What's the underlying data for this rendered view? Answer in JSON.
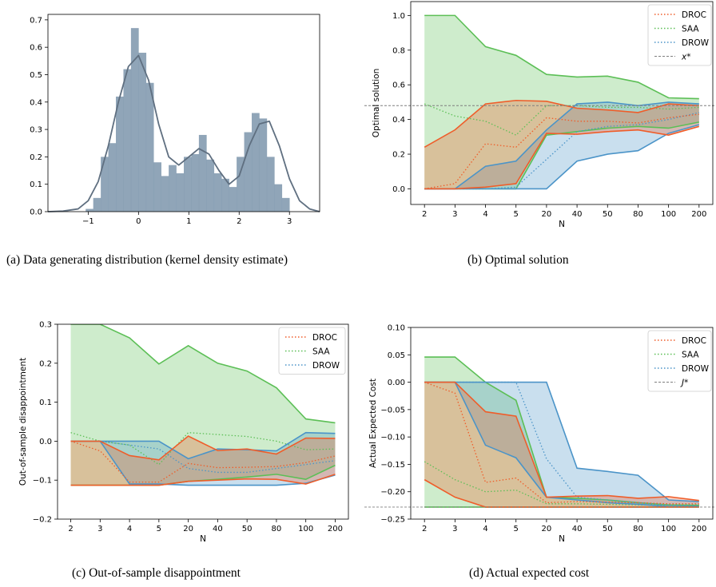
{
  "captions": {
    "a": "(a) Data generating distribution (kernel density estimate)",
    "b": "(b) Optimal solution",
    "c": "(c) Out-of-sample disappointment",
    "d": "(d) Actual expected cost"
  },
  "colors": {
    "droc": "#ef5d2a",
    "saa": "#5cbf56",
    "drow": "#4b94c8",
    "hist": "#7d95ab",
    "kde": "#5f6f80",
    "ref": "#7f7f7f"
  },
  "chart_data": [
    {
      "id": "a",
      "type": "bar",
      "xlabel": "",
      "ylabel": "",
      "xlim": [
        -1.8,
        3.6
      ],
      "ylim": [
        0,
        0.72
      ],
      "xticks": [
        -1,
        0,
        1,
        2,
        3
      ],
      "xtick_labels": [
        "−1",
        "0",
        "1",
        "2",
        "3"
      ],
      "yticks": [
        0,
        0.1,
        0.2,
        0.3,
        0.4,
        0.5,
        0.6,
        0.7
      ],
      "ytick_labels": [
        "0.0",
        "0.1",
        "0.2",
        "0.3",
        "0.4",
        "0.5",
        "0.6",
        "0.7"
      ],
      "bin_edges": [
        -1.05,
        -0.9,
        -0.75,
        -0.6,
        -0.45,
        -0.3,
        -0.15,
        0.0,
        0.15,
        0.3,
        0.45,
        0.6,
        0.75,
        0.9,
        1.05,
        1.2,
        1.35,
        1.5,
        1.65,
        1.8,
        1.95,
        2.1,
        2.25,
        2.4,
        2.55,
        2.7,
        2.85,
        3.0
      ],
      "bin_heights": [
        0.01,
        0.05,
        0.2,
        0.25,
        0.42,
        0.52,
        0.67,
        0.58,
        0.47,
        0.18,
        0.13,
        0.17,
        0.14,
        0.2,
        0.21,
        0.28,
        0.19,
        0.14,
        0.12,
        0.09,
        0.2,
        0.29,
        0.36,
        0.34,
        0.2,
        0.1,
        0.05
      ],
      "kde_x": [
        -1.8,
        -1.5,
        -1.2,
        -1.0,
        -0.8,
        -0.6,
        -0.4,
        -0.2,
        0.0,
        0.2,
        0.4,
        0.6,
        0.8,
        1.0,
        1.2,
        1.4,
        1.6,
        1.8,
        2.0,
        2.2,
        2.4,
        2.6,
        2.8,
        3.0,
        3.2,
        3.4,
        3.6
      ],
      "kde_y": [
        0.0,
        0.002,
        0.01,
        0.04,
        0.11,
        0.24,
        0.4,
        0.53,
        0.57,
        0.48,
        0.32,
        0.2,
        0.17,
        0.2,
        0.23,
        0.21,
        0.15,
        0.1,
        0.13,
        0.24,
        0.32,
        0.33,
        0.24,
        0.12,
        0.04,
        0.01,
        0.0
      ]
    },
    {
      "id": "b",
      "type": "line",
      "xlabel": "N",
      "ylabel": "Optimal solution",
      "categories": [
        "2",
        "3",
        "4",
        "5",
        "20",
        "40",
        "50",
        "80",
        "100",
        "200"
      ],
      "ylim": [
        -0.09,
        1.08
      ],
      "yticks": [
        0,
        0.2,
        0.4,
        0.6,
        0.8,
        1.0
      ],
      "ytick_labels": [
        "0.0",
        "0.2",
        "0.4",
        "0.6",
        "0.8",
        "1.0"
      ],
      "legend_position": "top-right",
      "legend": [
        {
          "label": "DROC",
          "style": "dotted",
          "color": "#ef5d2a"
        },
        {
          "label": "SAA",
          "style": "dotted",
          "color": "#5cbf56"
        },
        {
          "label": "DROW",
          "style": "dotted",
          "color": "#4b94c8"
        },
        {
          "label": "x*",
          "style": "dashed",
          "color": "#7f7f7f"
        }
      ],
      "reference_line": 0.48,
      "series": [
        {
          "key": "saa",
          "upper": [
            1.0,
            1.0,
            0.82,
            0.77,
            0.66,
            0.645,
            0.65,
            0.615,
            0.525,
            0.52
          ],
          "lower": [
            0.0,
            0.0,
            0.0,
            0.0,
            0.31,
            0.33,
            0.35,
            0.36,
            0.35,
            0.385
          ],
          "mean": [
            0.49,
            0.42,
            0.39,
            0.31,
            0.48,
            0.48,
            0.47,
            0.47,
            0.46,
            0.47
          ]
        },
        {
          "key": "drow",
          "upper": [
            0.0,
            0.0,
            0.13,
            0.16,
            0.34,
            0.49,
            0.5,
            0.48,
            0.5,
            0.49
          ],
          "lower": [
            0.0,
            0.0,
            0.0,
            0.0,
            0.0,
            0.16,
            0.2,
            0.22,
            0.32,
            0.37
          ],
          "mean": [
            0.0,
            0.0,
            0.0,
            0.01,
            0.17,
            0.33,
            0.36,
            0.37,
            0.4,
            0.44
          ]
        },
        {
          "key": "droc",
          "upper": [
            0.24,
            0.34,
            0.49,
            0.51,
            0.505,
            0.465,
            0.455,
            0.44,
            0.49,
            0.48
          ],
          "lower": [
            0.0,
            0.0,
            0.01,
            0.03,
            0.32,
            0.315,
            0.33,
            0.34,
            0.31,
            0.36
          ],
          "mean": [
            0.0,
            0.03,
            0.26,
            0.24,
            0.41,
            0.39,
            0.39,
            0.38,
            0.41,
            0.43
          ]
        }
      ]
    },
    {
      "id": "c",
      "type": "line",
      "xlabel": "N",
      "ylabel": "Out-of-sample disappointment",
      "categories": [
        "2",
        "3",
        "4",
        "5",
        "20",
        "40",
        "50",
        "80",
        "100",
        "200"
      ],
      "ylim": [
        -0.2,
        0.3
      ],
      "yticks": [
        -0.2,
        -0.1,
        0.0,
        0.1,
        0.2,
        0.3
      ],
      "ytick_labels": [
        "−0.2",
        "−0.1",
        "0.0",
        "0.1",
        "0.2",
        "0.3"
      ],
      "legend_position": "top-right",
      "legend": [
        {
          "label": "DROC",
          "style": "dotted",
          "color": "#ef5d2a"
        },
        {
          "label": "SAA",
          "style": "dotted",
          "color": "#5cbf56"
        },
        {
          "label": "DROW",
          "style": "dotted",
          "color": "#4b94c8"
        }
      ],
      "series": [
        {
          "key": "saa",
          "upper": [
            0.3,
            0.3,
            0.265,
            0.198,
            0.245,
            0.2,
            0.18,
            0.137,
            0.057,
            0.047
          ],
          "lower": [
            -0.113,
            -0.113,
            -0.113,
            -0.113,
            -0.103,
            -0.098,
            -0.092,
            -0.085,
            -0.098,
            -0.062
          ],
          "mean": [
            0.022,
            0.0,
            -0.01,
            -0.06,
            0.022,
            0.017,
            0.012,
            0.0,
            -0.022,
            -0.02
          ]
        },
        {
          "key": "drow",
          "upper": [
            0.0,
            0.0,
            0.0,
            0.0,
            -0.045,
            -0.02,
            -0.022,
            -0.025,
            0.022,
            0.02
          ],
          "lower": [
            0.0,
            0.0,
            -0.11,
            -0.11,
            -0.113,
            -0.113,
            -0.113,
            -0.113,
            -0.108,
            -0.087
          ],
          "mean": [
            0.0,
            0.0,
            -0.01,
            -0.02,
            -0.07,
            -0.08,
            -0.08,
            -0.07,
            -0.06,
            -0.05
          ]
        },
        {
          "key": "droc",
          "upper": [
            0.0,
            0.0,
            -0.037,
            -0.048,
            0.013,
            -0.024,
            -0.02,
            -0.033,
            0.008,
            0.007
          ],
          "lower": [
            -0.113,
            -0.113,
            -0.113,
            -0.113,
            -0.103,
            -0.1,
            -0.097,
            -0.098,
            -0.11,
            -0.085
          ],
          "mean": [
            0.0,
            -0.025,
            -0.105,
            -0.105,
            -0.057,
            -0.068,
            -0.067,
            -0.065,
            -0.055,
            -0.038
          ]
        }
      ]
    },
    {
      "id": "d",
      "type": "line",
      "xlabel": "N",
      "ylabel": "Actual Expected Cost",
      "categories": [
        "2",
        "3",
        "4",
        "5",
        "20",
        "40",
        "50",
        "80",
        "100",
        "200"
      ],
      "ylim": [
        -0.25,
        0.1
      ],
      "yticks": [
        -0.25,
        -0.2,
        -0.15,
        -0.1,
        -0.05,
        0.0,
        0.05,
        0.1
      ],
      "ytick_labels": [
        "−0.25",
        "−0.20",
        "−0.15",
        "−0.10",
        "−0.05",
        "0.00",
        "0.05",
        "0.10"
      ],
      "legend_position": "top-right",
      "legend": [
        {
          "label": "DROC",
          "style": "dotted",
          "color": "#ef5d2a"
        },
        {
          "label": "SAA",
          "style": "dotted",
          "color": "#5cbf56"
        },
        {
          "label": "DROW",
          "style": "dotted",
          "color": "#4b94c8"
        },
        {
          "label": "J*",
          "style": "dashed",
          "color": "#7f7f7f"
        }
      ],
      "reference_line": -0.228,
      "series": [
        {
          "key": "saa",
          "upper": [
            0.046,
            0.046,
            0.0,
            -0.033,
            -0.21,
            -0.212,
            -0.215,
            -0.22,
            -0.224,
            -0.225
          ],
          "lower": [
            -0.228,
            -0.228,
            -0.228,
            -0.228,
            -0.228,
            -0.228,
            -0.228,
            -0.228,
            -0.228,
            -0.228
          ],
          "mean": [
            -0.145,
            -0.178,
            -0.2,
            -0.197,
            -0.222,
            -0.222,
            -0.223,
            -0.224,
            -0.224,
            -0.224
          ]
        },
        {
          "key": "drow",
          "upper": [
            0.0,
            0.0,
            0.0,
            0.0,
            0.0,
            -0.157,
            -0.163,
            -0.17,
            -0.215,
            -0.218
          ],
          "lower": [
            0.0,
            0.0,
            -0.115,
            -0.138,
            -0.21,
            -0.215,
            -0.22,
            -0.223,
            -0.227,
            -0.227
          ],
          "mean": [
            0.0,
            0.0,
            0.0,
            0.0,
            -0.14,
            -0.21,
            -0.215,
            -0.22,
            -0.224,
            -0.226
          ]
        },
        {
          "key": "droc",
          "upper": [
            0.0,
            0.0,
            -0.054,
            -0.062,
            -0.21,
            -0.208,
            -0.207,
            -0.212,
            -0.209,
            -0.216
          ],
          "lower": [
            -0.178,
            -0.21,
            -0.228,
            -0.228,
            -0.228,
            -0.228,
            -0.228,
            -0.228,
            -0.228,
            -0.228
          ],
          "mean": [
            0.0,
            -0.02,
            -0.183,
            -0.175,
            -0.22,
            -0.218,
            -0.219,
            -0.22,
            -0.222,
            -0.222
          ]
        }
      ]
    }
  ]
}
